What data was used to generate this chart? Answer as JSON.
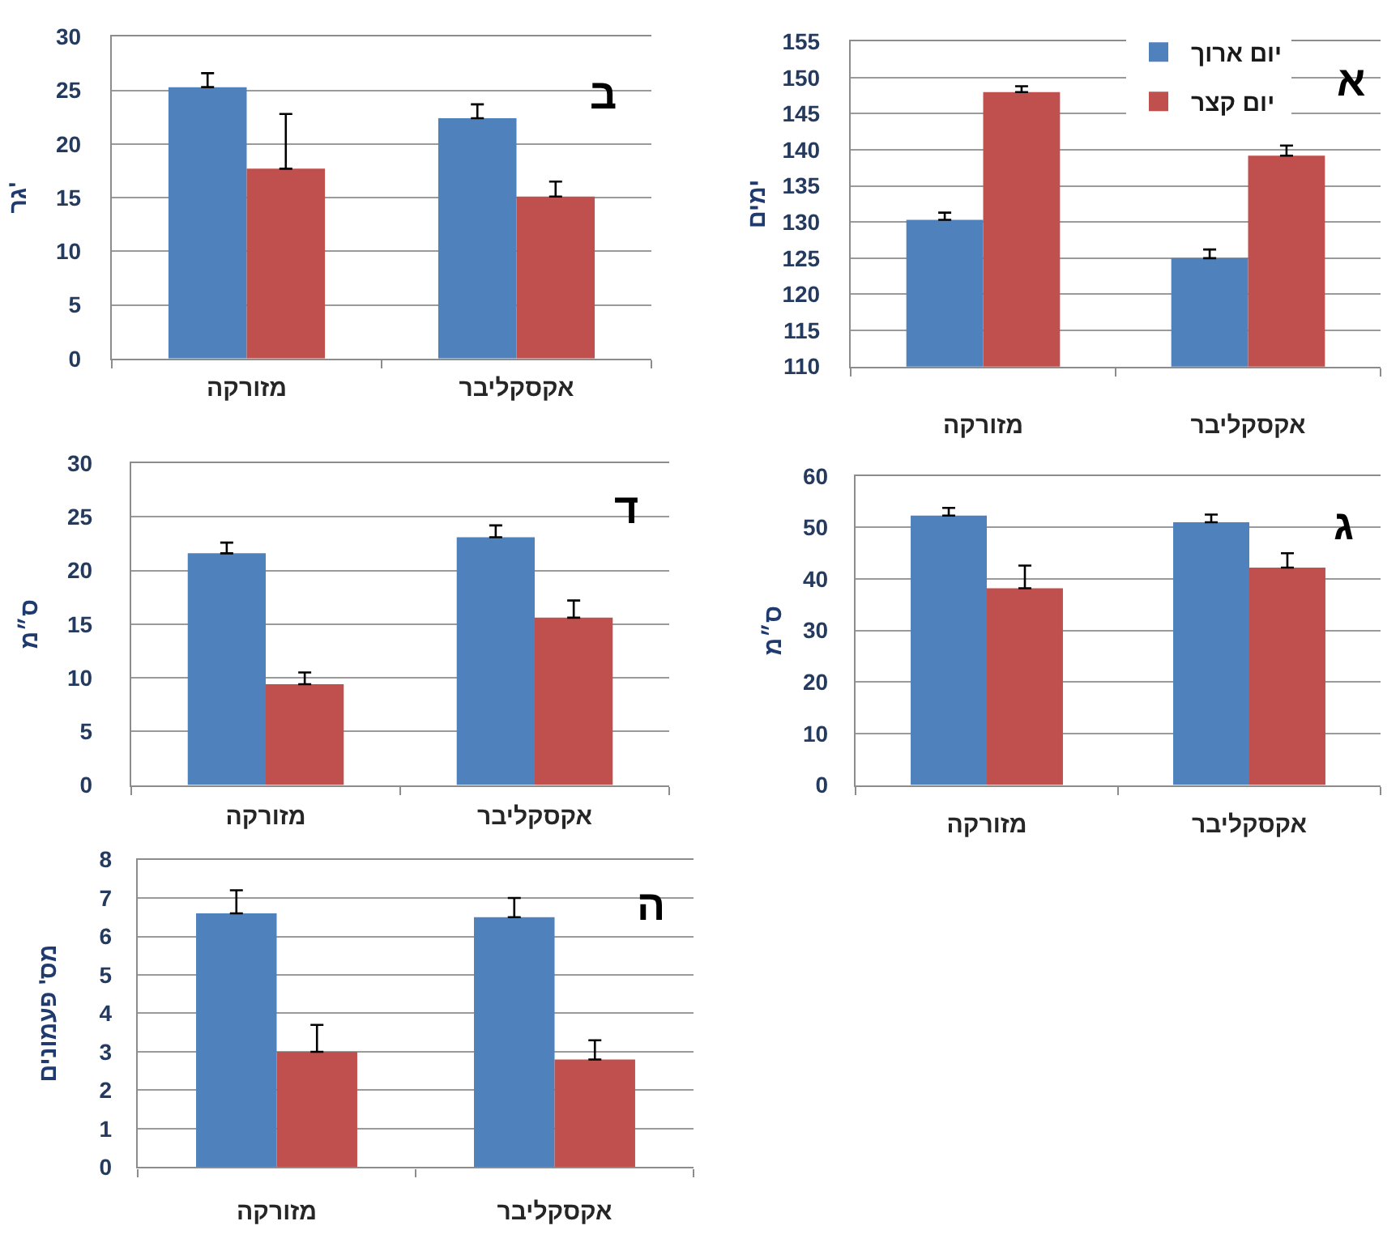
{
  "chart_data": [
    {
      "type": "bar",
      "title": "א",
      "ylabel": "ימים",
      "categories": [
        "מזורקה",
        "אקסקליבר"
      ],
      "series": [
        {
          "name": "יום ארוך",
          "color": "#4f81bd",
          "values": [
            130.3,
            125.0
          ],
          "errors": [
            [
              130.3,
              131.3
            ],
            [
              125.0,
              126.2
            ]
          ]
        },
        {
          "name": "יום קצר",
          "color": "#c0504d",
          "values": [
            148.0,
            139.2
          ],
          "errors": [
            [
              148.0,
              148.8
            ],
            [
              139.2,
              140.6
            ]
          ]
        }
      ],
      "ylim": [
        110,
        155
      ],
      "yticks": [
        110,
        115,
        120,
        125,
        130,
        135,
        140,
        145,
        150,
        155
      ],
      "grid": "y",
      "legend": "top right"
    },
    {
      "type": "bar",
      "title": "ב",
      "ylabel": "גר'",
      "categories": [
        "מזורקה",
        "אקסקליבר"
      ],
      "series": [
        {
          "color": "#4f81bd",
          "values": [
            25.3,
            22.4
          ],
          "errors": [
            [
              25.3,
              26.6
            ],
            [
              22.4,
              23.7
            ]
          ]
        },
        {
          "color": "#c0504d",
          "values": [
            17.7,
            15.1
          ],
          "errors": [
            [
              17.7,
              22.8
            ],
            [
              15.1,
              16.5
            ]
          ]
        }
      ],
      "ylim": [
        0,
        30
      ],
      "yticks": [
        0,
        5,
        10,
        15,
        20,
        25,
        30
      ],
      "grid": "y"
    },
    {
      "type": "bar",
      "title": "ג",
      "ylabel": "ס״מ",
      "categories": [
        "מזורקה",
        "אקסקליבר"
      ],
      "series": [
        {
          "color": "#4f81bd",
          "values": [
            52.3,
            51.0
          ],
          "errors": [
            [
              52.3,
              53.8
            ],
            [
              51.0,
              52.5
            ]
          ]
        },
        {
          "color": "#c0504d",
          "values": [
            38.2,
            42.2
          ],
          "errors": [
            [
              38.2,
              42.6
            ],
            [
              42.2,
              45.0
            ]
          ]
        }
      ],
      "ylim": [
        0,
        60
      ],
      "yticks": [
        0,
        10,
        20,
        30,
        40,
        50,
        60
      ],
      "grid": "y"
    },
    {
      "type": "bar",
      "title": "ד",
      "ylabel": "ס״מ",
      "categories": [
        "מזורקה",
        "אקסקליבר"
      ],
      "series": [
        {
          "color": "#4f81bd",
          "values": [
            21.6,
            23.1
          ],
          "errors": [
            [
              21.6,
              22.6
            ],
            [
              23.1,
              24.2
            ]
          ]
        },
        {
          "color": "#c0504d",
          "values": [
            9.4,
            15.6
          ],
          "errors": [
            [
              9.4,
              10.5
            ],
            [
              15.6,
              17.2
            ]
          ]
        }
      ],
      "ylim": [
        0,
        30
      ],
      "yticks": [
        0,
        5,
        10,
        15,
        20,
        25,
        30
      ],
      "grid": "y"
    },
    {
      "type": "bar",
      "title": "ה",
      "ylabel": "מס' פעמונים",
      "categories": [
        "מזורקה",
        "אקסקליבר"
      ],
      "series": [
        {
          "color": "#4f81bd",
          "values": [
            6.6,
            6.5
          ],
          "errors": [
            [
              6.6,
              7.2
            ],
            [
              6.5,
              7.0
            ]
          ]
        },
        {
          "color": "#c0504d",
          "values": [
            3.0,
            2.8
          ],
          "errors": [
            [
              3.0,
              3.7
            ],
            [
              2.8,
              3.3
            ]
          ]
        }
      ],
      "ylim": [
        0,
        8
      ],
      "yticks": [
        0,
        1,
        2,
        3,
        4,
        5,
        6,
        7,
        8
      ],
      "grid": "y"
    }
  ]
}
